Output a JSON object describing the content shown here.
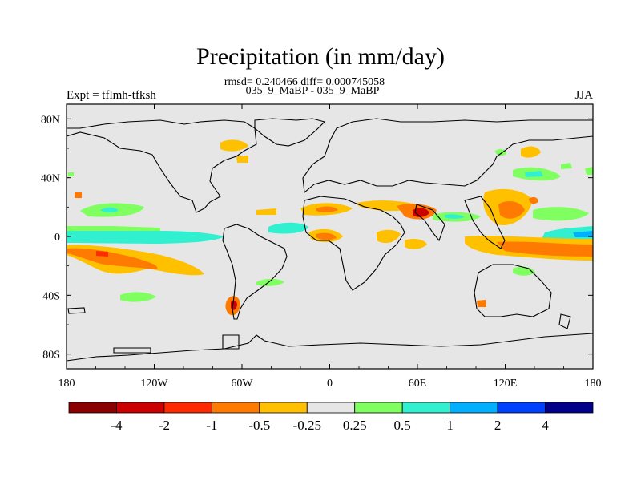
{
  "title": "Precipitation (in mm/day)",
  "stats": "rmsd= 0.240466 diff= 0.000745058",
  "subtitle": "035_9_MaBP - 035_9_MaBP",
  "left_label": "Expt = tflmh-tfksh",
  "right_label": "JJA",
  "map": {
    "lon_range": [
      -180,
      180
    ],
    "lat_range": [
      -90,
      90
    ],
    "background_color": "#e6e6e6",
    "x_ticks": [
      {
        "value": -180,
        "label": "180"
      },
      {
        "value": -120,
        "label": "120W"
      },
      {
        "value": -60,
        "label": "60W"
      },
      {
        "value": 0,
        "label": "0"
      },
      {
        "value": 60,
        "label": "60E"
      },
      {
        "value": 120,
        "label": "120E"
      },
      {
        "value": 180,
        "label": "180"
      }
    ],
    "y_ticks": [
      {
        "value": 80,
        "label": "80N"
      },
      {
        "value": 40,
        "label": "40N"
      },
      {
        "value": 0,
        "label": "0"
      },
      {
        "value": -40,
        "label": "40S"
      },
      {
        "value": -80,
        "label": "80S"
      }
    ]
  },
  "colorbar": {
    "colors": [
      "#8b0000",
      "#cc0000",
      "#ff2a00",
      "#ff7a00",
      "#ffc000",
      "#e6e6e6",
      "#80ff60",
      "#30f0d0",
      "#00b0ff",
      "#0040ff",
      "#00008b"
    ],
    "labels": [
      "-4",
      "-2",
      "-1",
      "-0.5",
      "-0.25",
      "0.25",
      "0.5",
      "1",
      "2",
      "4"
    ]
  }
}
